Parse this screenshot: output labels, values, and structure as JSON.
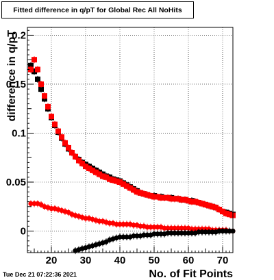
{
  "title": "Fitted difference in q/pT  for Global Rec All NoHits",
  "timestamp": "Tue Dec 21 07:22:36 2021",
  "chart_data": {
    "type": "scatter",
    "xlabel": "No. of Fit Points",
    "ylabel": "difference in q/pT",
    "xlim": [
      13,
      73
    ],
    "ylim": [
      -0.022,
      0.208
    ],
    "xticks": [
      20,
      30,
      40,
      50,
      60,
      70
    ],
    "yticks": [
      0,
      0.05,
      0.1,
      0.15,
      0.2
    ],
    "ytick_labels": [
      "0",
      "0.05",
      "0.1",
      "0.15",
      "0.2"
    ],
    "grid": true,
    "series": [
      {
        "color": "#000000",
        "marker": "square",
        "points": [
          [
            14,
            0.169
          ],
          [
            15,
            0.163
          ],
          [
            16,
            0.155
          ],
          [
            17,
            0.145
          ],
          [
            18,
            0.135
          ],
          [
            19,
            0.125
          ],
          [
            20,
            0.116
          ],
          [
            21,
            0.108
          ],
          [
            22,
            0.101
          ],
          [
            23,
            0.095
          ],
          [
            24,
            0.089
          ],
          [
            25,
            0.084
          ],
          [
            26,
            0.08
          ],
          [
            27,
            0.076
          ],
          [
            28,
            0.073
          ],
          [
            29,
            0.07
          ],
          [
            30,
            0.068
          ],
          [
            31,
            0.066
          ],
          [
            32,
            0.064
          ],
          [
            33,
            0.062
          ],
          [
            34,
            0.06
          ],
          [
            35,
            0.058
          ],
          [
            36,
            0.056
          ],
          [
            37,
            0.055
          ],
          [
            38,
            0.053
          ],
          [
            39,
            0.052
          ],
          [
            40,
            0.051
          ],
          [
            41,
            0.049
          ],
          [
            42,
            0.047
          ],
          [
            43,
            0.045
          ],
          [
            44,
            0.043
          ],
          [
            45,
            0.041
          ],
          [
            46,
            0.039
          ],
          [
            47,
            0.038
          ],
          [
            48,
            0.037
          ],
          [
            49,
            0.036
          ],
          [
            50,
            0.036
          ],
          [
            51,
            0.035
          ],
          [
            52,
            0.035
          ],
          [
            53,
            0.034
          ],
          [
            54,
            0.034
          ],
          [
            55,
            0.034
          ],
          [
            56,
            0.033
          ],
          [
            57,
            0.033
          ],
          [
            58,
            0.032
          ],
          [
            59,
            0.032
          ],
          [
            60,
            0.031
          ],
          [
            61,
            0.031
          ],
          [
            62,
            0.03
          ],
          [
            63,
            0.029
          ],
          [
            64,
            0.028
          ],
          [
            65,
            0.027
          ],
          [
            66,
            0.026
          ],
          [
            67,
            0.025
          ],
          [
            68,
            0.024
          ],
          [
            69,
            0.022
          ],
          [
            70,
            0.02
          ],
          [
            71,
            0.019
          ],
          [
            72,
            0.018
          ],
          [
            73,
            0.017
          ]
        ]
      },
      {
        "color": "#ff0000",
        "marker": "square",
        "points": [
          [
            14,
            0.165
          ],
          [
            15,
            0.175
          ],
          [
            16,
            0.165
          ],
          [
            17,
            0.15
          ],
          [
            18,
            0.138
          ],
          [
            19,
            0.127
          ],
          [
            20,
            0.117
          ],
          [
            21,
            0.109
          ],
          [
            22,
            0.102
          ],
          [
            23,
            0.096
          ],
          [
            24,
            0.09
          ],
          [
            25,
            0.085
          ],
          [
            26,
            0.08
          ],
          [
            27,
            0.076
          ],
          [
            28,
            0.072
          ],
          [
            29,
            0.069
          ],
          [
            30,
            0.066
          ],
          [
            31,
            0.064
          ],
          [
            32,
            0.062
          ],
          [
            33,
            0.06
          ],
          [
            34,
            0.058
          ],
          [
            35,
            0.056
          ],
          [
            36,
            0.055
          ],
          [
            37,
            0.053
          ],
          [
            38,
            0.052
          ],
          [
            39,
            0.051
          ],
          [
            40,
            0.05
          ],
          [
            41,
            0.048
          ],
          [
            42,
            0.046
          ],
          [
            43,
            0.044
          ],
          [
            44,
            0.042
          ],
          [
            45,
            0.04
          ],
          [
            46,
            0.039
          ],
          [
            47,
            0.038
          ],
          [
            48,
            0.037
          ],
          [
            49,
            0.036
          ],
          [
            50,
            0.035
          ],
          [
            51,
            0.035
          ],
          [
            52,
            0.034
          ],
          [
            53,
            0.034
          ],
          [
            54,
            0.034
          ],
          [
            55,
            0.033
          ],
          [
            56,
            0.033
          ],
          [
            57,
            0.033
          ],
          [
            58,
            0.032
          ],
          [
            59,
            0.032
          ],
          [
            60,
            0.031
          ],
          [
            61,
            0.03
          ],
          [
            62,
            0.03
          ],
          [
            63,
            0.029
          ],
          [
            64,
            0.028
          ],
          [
            65,
            0.027
          ],
          [
            66,
            0.026
          ],
          [
            67,
            0.025
          ],
          [
            68,
            0.024
          ],
          [
            69,
            0.022
          ],
          [
            70,
            0.02
          ],
          [
            71,
            0.018
          ],
          [
            72,
            0.017
          ],
          [
            73,
            0.016
          ]
        ]
      },
      {
        "color": "#ff0000",
        "marker": "circle",
        "points": [
          [
            14,
            0.028
          ],
          [
            15,
            0.028
          ],
          [
            16,
            0.028
          ],
          [
            17,
            0.027
          ],
          [
            18,
            0.025
          ],
          [
            19,
            0.024
          ],
          [
            20,
            0.023
          ],
          [
            21,
            0.023
          ],
          [
            22,
            0.022
          ],
          [
            23,
            0.021
          ],
          [
            24,
            0.02
          ],
          [
            25,
            0.019
          ],
          [
            26,
            0.017
          ],
          [
            27,
            0.016
          ],
          [
            28,
            0.015
          ],
          [
            29,
            0.014
          ],
          [
            30,
            0.013
          ],
          [
            31,
            0.013
          ],
          [
            32,
            0.012
          ],
          [
            33,
            0.011
          ],
          [
            34,
            0.01
          ],
          [
            35,
            0.01
          ],
          [
            36,
            0.009
          ],
          [
            37,
            0.008
          ],
          [
            38,
            0.008
          ],
          [
            39,
            0.007
          ],
          [
            40,
            0.007
          ],
          [
            41,
            0.007
          ],
          [
            42,
            0.007
          ],
          [
            43,
            0.007
          ],
          [
            44,
            0.006
          ],
          [
            45,
            0.006
          ],
          [
            46,
            0.005
          ],
          [
            47,
            0.005
          ],
          [
            48,
            0.004
          ],
          [
            49,
            0.004
          ],
          [
            50,
            0.004
          ],
          [
            51,
            0.004
          ],
          [
            52,
            0.004
          ],
          [
            53,
            0.003
          ],
          [
            54,
            0.003
          ],
          [
            55,
            0.003
          ],
          [
            56,
            0.003
          ],
          [
            57,
            0.003
          ],
          [
            58,
            0.003
          ],
          [
            59,
            0.003
          ],
          [
            60,
            0.003
          ],
          [
            61,
            0.002
          ],
          [
            62,
            0.002
          ],
          [
            63,
            0.002
          ],
          [
            64,
            0.002
          ],
          [
            65,
            0.002
          ],
          [
            66,
            0.002
          ],
          [
            67,
            0.001
          ],
          [
            68,
            0.001
          ],
          [
            69,
            0.001
          ],
          [
            70,
            0.001
          ],
          [
            71,
            0.001
          ],
          [
            72,
            0.0
          ],
          [
            73,
            0.0
          ]
        ]
      },
      {
        "color": "#000000",
        "marker": "circle",
        "points": [
          [
            27,
            -0.02
          ],
          [
            28,
            -0.019
          ],
          [
            29,
            -0.018
          ],
          [
            30,
            -0.017
          ],
          [
            31,
            -0.016
          ],
          [
            32,
            -0.015
          ],
          [
            33,
            -0.014
          ],
          [
            34,
            -0.013
          ],
          [
            35,
            -0.012
          ],
          [
            36,
            -0.011
          ],
          [
            37,
            -0.009
          ],
          [
            38,
            -0.008
          ],
          [
            39,
            -0.007
          ],
          [
            40,
            -0.006
          ],
          [
            41,
            -0.006
          ],
          [
            42,
            -0.006
          ],
          [
            43,
            -0.006
          ],
          [
            44,
            -0.005
          ],
          [
            45,
            -0.005
          ],
          [
            46,
            -0.005
          ],
          [
            47,
            -0.004
          ],
          [
            48,
            -0.004
          ],
          [
            49,
            -0.004
          ],
          [
            50,
            -0.003
          ],
          [
            51,
            -0.003
          ],
          [
            52,
            -0.003
          ],
          [
            53,
            -0.003
          ],
          [
            54,
            -0.002
          ],
          [
            55,
            -0.002
          ],
          [
            56,
            -0.002
          ],
          [
            57,
            -0.002
          ],
          [
            58,
            -0.002
          ],
          [
            59,
            -0.002
          ],
          [
            60,
            -0.002
          ],
          [
            61,
            -0.002
          ],
          [
            62,
            -0.002
          ],
          [
            63,
            -0.001
          ],
          [
            64,
            -0.001
          ],
          [
            65,
            -0.001
          ],
          [
            66,
            -0.001
          ],
          [
            67,
            -0.001
          ],
          [
            68,
            -0.001
          ],
          [
            69,
            0.0
          ],
          [
            70,
            0.0
          ],
          [
            71,
            0.0
          ],
          [
            72,
            0.0
          ],
          [
            73,
            0.0
          ]
        ]
      }
    ]
  }
}
